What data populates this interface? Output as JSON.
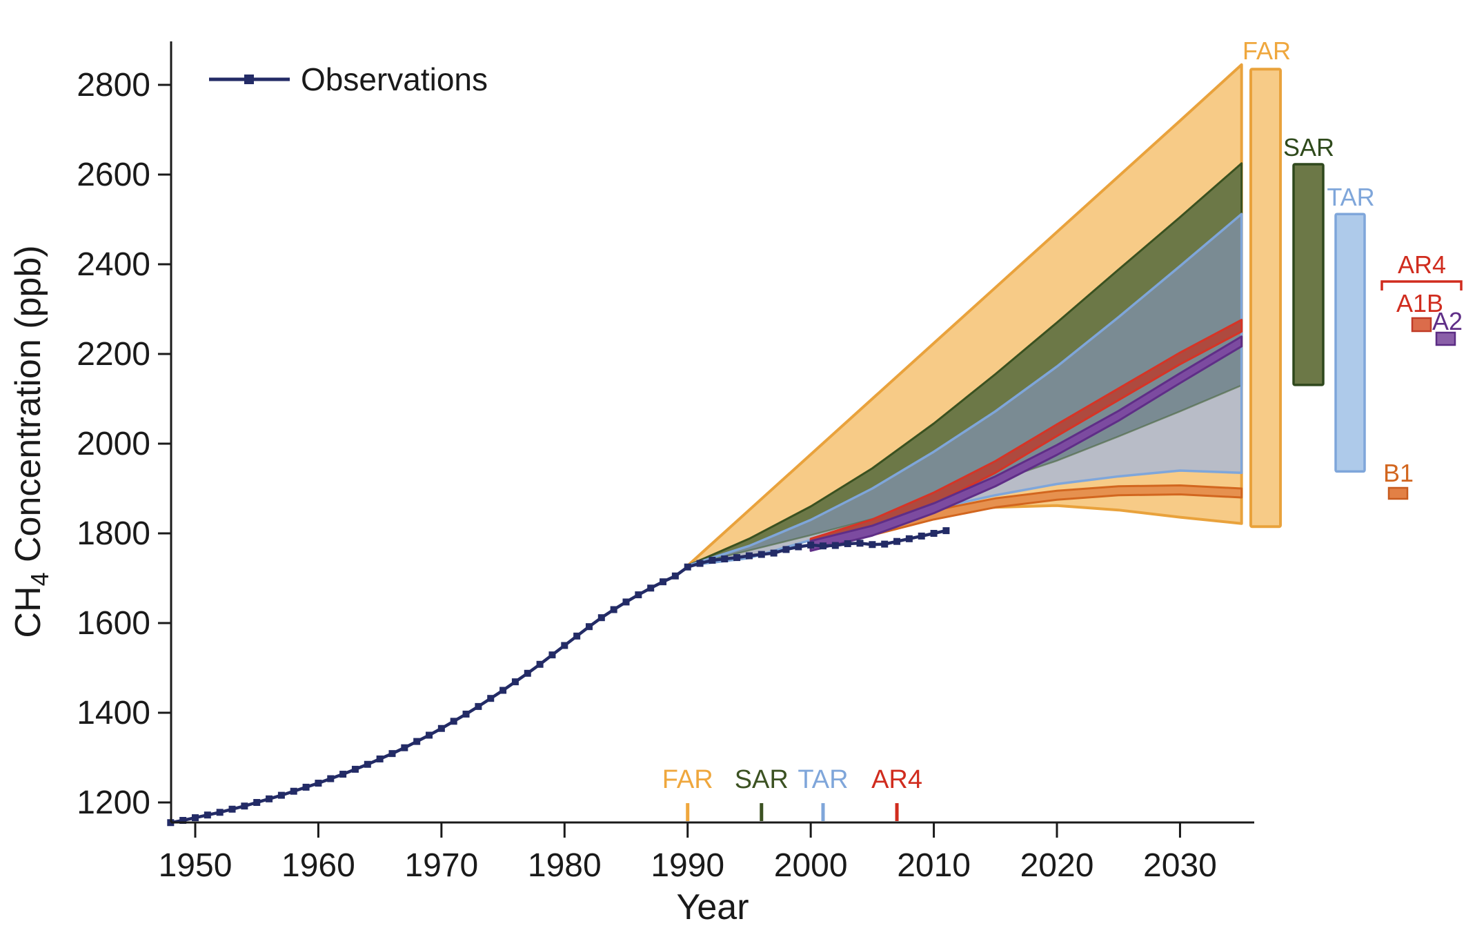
{
  "chart_data": {
    "type": "line",
    "title": "",
    "xlabel": "Year",
    "ylabel_prefix": "CH",
    "ylabel_sub": "4",
    "ylabel_suffix": " Concentration (ppb)",
    "xlim": [
      1948,
      2036
    ],
    "ylim": [
      1155,
      2897
    ],
    "x_ticks": [
      1950,
      1960,
      1970,
      1980,
      1990,
      2000,
      2010,
      2020,
      2030
    ],
    "y_ticks": [
      1200,
      1400,
      1600,
      1800,
      2000,
      2200,
      2400,
      2600,
      2800
    ],
    "grid": false,
    "legend": {
      "label": "Observations",
      "position": "top-left",
      "line_color": "#232B66"
    },
    "observations": {
      "color": "#232B66",
      "marker": "square",
      "years": [
        1948,
        1949,
        1950,
        1951,
        1952,
        1953,
        1954,
        1955,
        1956,
        1957,
        1958,
        1959,
        1960,
        1961,
        1962,
        1963,
        1964,
        1965,
        1966,
        1967,
        1968,
        1969,
        1970,
        1971,
        1972,
        1973,
        1974,
        1975,
        1976,
        1977,
        1978,
        1979,
        1980,
        1981,
        1982,
        1983,
        1984,
        1985,
        1986,
        1987,
        1988,
        1989,
        1990,
        1991,
        1992,
        1993,
        1994,
        1995,
        1996,
        1997,
        1998,
        1999,
        2000,
        2001,
        2002,
        2003,
        2004,
        2005,
        2006,
        2007,
        2008,
        2009,
        2010,
        2011
      ],
      "values": [
        1155,
        1160,
        1166,
        1172,
        1178,
        1185,
        1192,
        1200,
        1208,
        1216,
        1225,
        1234,
        1243,
        1253,
        1263,
        1274,
        1285,
        1297,
        1309,
        1322,
        1336,
        1350,
        1365,
        1381,
        1397,
        1414,
        1432,
        1450,
        1469,
        1488,
        1508,
        1529,
        1550,
        1571,
        1592,
        1612,
        1630,
        1647,
        1663,
        1678,
        1692,
        1705,
        1725,
        1733,
        1740,
        1743,
        1746,
        1750,
        1753,
        1756,
        1764,
        1770,
        1774,
        1772,
        1773,
        1777,
        1778,
        1775,
        1776,
        1782,
        1788,
        1794,
        1800,
        1806
      ]
    },
    "fan_years": [
      1990,
      1995,
      2000,
      2005,
      2010,
      2015,
      2020,
      2025,
      2030,
      2035
    ],
    "projections": {
      "FAR": {
        "label": "FAR",
        "fill": "#F7CB87",
        "stroke": "#E9A23C",
        "label_color": "#EFA73D",
        "top": [
          1728,
          1852,
          1976,
          2100,
          2224,
          2348,
          2472,
          2596,
          2720,
          2845
        ],
        "bottom": [
          1728,
          1762,
          1792,
          1822,
          1846,
          1858,
          1862,
          1852,
          1836,
          1822
        ],
        "bar_2035_range": [
          1815,
          2835
        ]
      },
      "SAR": {
        "label": "SAR",
        "fill": "#6C7847",
        "stroke": "#3A5120",
        "label_color": "#2F4A1C",
        "top": [
          1728,
          1788,
          1860,
          1945,
          2045,
          2155,
          2270,
          2388,
          2505,
          2625
        ],
        "bottom": [
          1728,
          1762,
          1796,
          1832,
          1872,
          1916,
          1962,
          2016,
          2072,
          2130
        ],
        "bar_2035_range": [
          2131,
          2623
        ]
      },
      "TAR": {
        "label": "TAR",
        "fill_over_sar": "#7A8B93",
        "fill_lower": "#B8BCC7",
        "stroke": "#7FA6DA",
        "bar_fill": "#AECAEA",
        "label_color": "#7FA6DA",
        "top": [
          1728,
          1772,
          1830,
          1900,
          1982,
          2072,
          2172,
          2282,
          2396,
          2512
        ],
        "bottom": [
          1728,
          1745,
          1785,
          1820,
          1855,
          1885,
          1910,
          1927,
          1940,
          1935
        ],
        "bar_2035_range": [
          1938,
          2512
        ]
      },
      "AR4": {
        "label": "AR4",
        "label_color": "#D02C1E",
        "band_years": [
          2000,
          2005,
          2010,
          2015,
          2020,
          2025,
          2030,
          2035
        ],
        "bands": {
          "A1B": {
            "label": "A1B",
            "center": [
              1775,
              1818,
              1878,
              1948,
              2030,
              2110,
              2190,
              2263
            ],
            "half_width": 13,
            "fill": "#AE4A3F",
            "stroke": "#D63426",
            "box_fill": "#DB6C4B",
            "box_stroke": "#C13B27",
            "label_color": "#D02C1E"
          },
          "A2": {
            "label": "A2",
            "center": [
              1772,
              1806,
              1856,
              1916,
              1986,
              2062,
              2146,
              2228
            ],
            "half_width": 11,
            "fill": "#7C4BA0",
            "stroke": "#5F2E87",
            "box_fill": "#8A5FA8",
            "box_stroke": "#5B2C84",
            "label_color": "#5F2E87"
          },
          "B1": {
            "label": "B1",
            "center": [
              1774,
              1806,
              1841,
              1868,
              1885,
              1895,
              1897,
              1890
            ],
            "half_width": 10,
            "fill": "#E6914F",
            "stroke": "#D2661F",
            "box_fill": "#E28045",
            "box_stroke": "#C75B1F",
            "label_color": "#D2661F"
          }
        }
      }
    },
    "assessment_markers": [
      {
        "label": "FAR",
        "year": 1990,
        "color": "#EFA73D"
      },
      {
        "label": "SAR",
        "year": 1996,
        "color": "#3C5222"
      },
      {
        "label": "TAR",
        "year": 2001,
        "color": "#7FA6DA"
      },
      {
        "label": "AR4",
        "year": 2007,
        "color": "#D02C1E"
      }
    ]
  }
}
